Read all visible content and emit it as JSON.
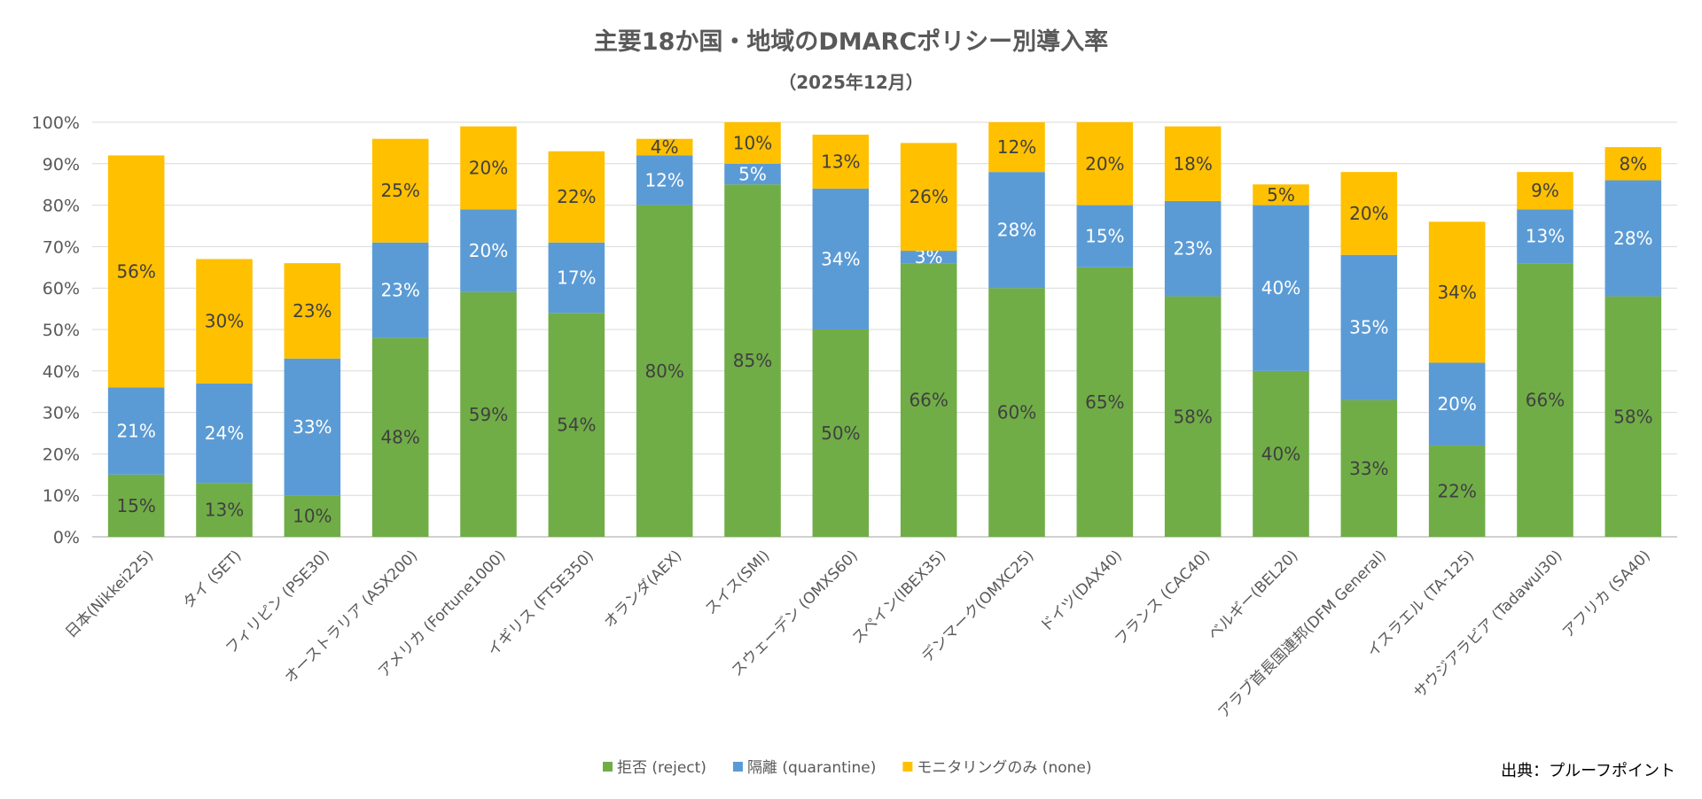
{
  "chart_data": {
    "type": "bar",
    "stacked": true,
    "title": "主要18か国・地域のDMARCポリシー別導入率",
    "subtitle": "（2025年12月）",
    "source": "出典：プルーフポイント",
    "ylim": [
      0,
      100
    ],
    "yticks": [
      "0%",
      "10%",
      "20%",
      "30%",
      "40%",
      "50%",
      "60%",
      "70%",
      "80%",
      "90%",
      "100%"
    ],
    "grid": true,
    "legend_position": "bottom",
    "categories": [
      "日本(Nikkei225)",
      "タイ (SET)",
      "フィリピン (PSE30)",
      "オーストラリア (ASX200)",
      "アメリカ (Fortune1000)",
      "イギリス (FTSE350)",
      "オランダ(AEX)",
      "スイス(SMI)",
      "スウェーデン (OMXS60)",
      "スペイン(IBEX35)",
      "デンマーク(OMXC25)",
      "ドイツ(DAX40)",
      "フランス (CAC40)",
      "ベルギー(BEL20)",
      "アラブ首長国連邦(DFM General)",
      "イスラエル (TA-125)",
      "サウジアラビア (Tadawul30)",
      "アフリカ (SA40)"
    ],
    "series": [
      {
        "name": "拒否 (reject)",
        "color": "#70AD47",
        "label_color": "#404040",
        "values": [
          15,
          13,
          10,
          48,
          59,
          54,
          80,
          85,
          50,
          66,
          60,
          65,
          58,
          40,
          33,
          22,
          66,
          58
        ]
      },
      {
        "name": "隔離 (quarantine)",
        "color": "#5B9BD5",
        "label_color": "#FFFFFF",
        "values": [
          21,
          24,
          33,
          23,
          20,
          17,
          12,
          5,
          34,
          3,
          28,
          15,
          23,
          40,
          35,
          20,
          13,
          28
        ]
      },
      {
        "name": "モニタリングのみ (none)",
        "color": "#FFC000",
        "label_color": "#404040",
        "values": [
          56,
          30,
          23,
          25,
          20,
          22,
          4,
          10,
          13,
          26,
          12,
          20,
          18,
          5,
          20,
          34,
          9,
          8
        ]
      }
    ]
  }
}
